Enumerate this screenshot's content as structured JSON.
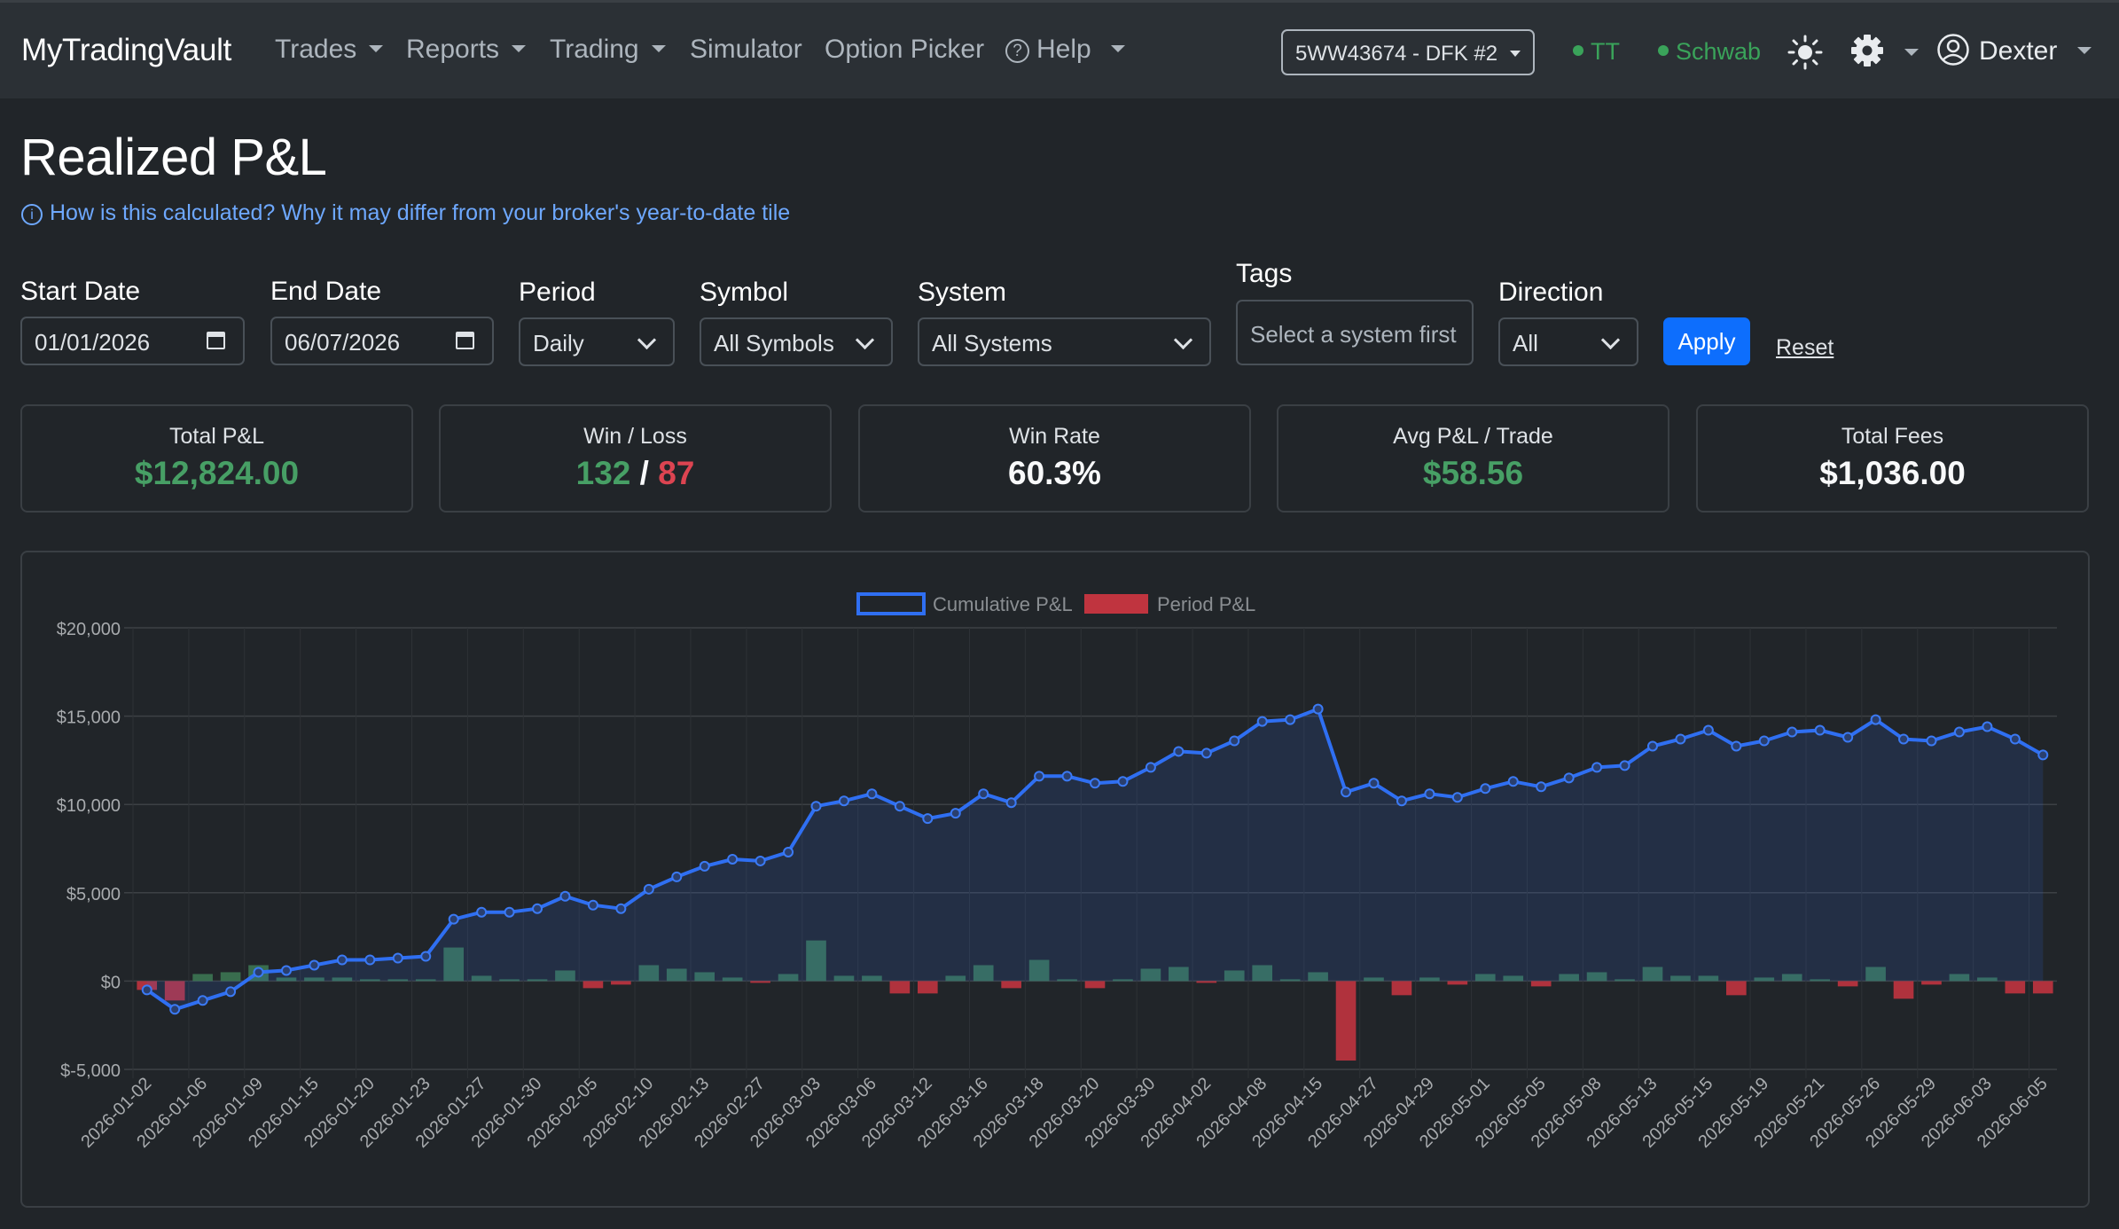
{
  "navbar": {
    "brand": "MyTradingVault",
    "items": [
      "Trades",
      "Reports",
      "Trading",
      "Simulator",
      "Option Picker",
      "Help"
    ],
    "account": "5WW43674 - DFK #2",
    "status": [
      "TT",
      "Schwab"
    ],
    "user": "Dexter",
    "icons": [
      "help-icon",
      "sun-icon",
      "gear-icon",
      "user-circle-icon"
    ],
    "status_color": "#3aa35a"
  },
  "page": {
    "title": "Realized P&L",
    "info_link": "How is this calculated? Why it may differ from your broker's year-to-date tile"
  },
  "filters": {
    "start_date": {
      "label": "Start Date",
      "value": "01/01/2026"
    },
    "end_date": {
      "label": "End Date",
      "value": "06/07/2026"
    },
    "period": {
      "label": "Period",
      "value": "Daily"
    },
    "symbol": {
      "label": "Symbol",
      "value": "All Symbols"
    },
    "system": {
      "label": "System",
      "value": "All Systems"
    },
    "tags": {
      "label": "Tags",
      "placeholder": "Select a system first"
    },
    "direction": {
      "label": "Direction",
      "value": "All"
    },
    "apply": "Apply",
    "reset": "Reset"
  },
  "stats": {
    "total_pnl": {
      "label": "Total P&L",
      "value": "$12,824.00"
    },
    "win_loss": {
      "label": "Win / Loss",
      "wins": "132",
      "sep": "/",
      "losses": "87"
    },
    "win_rate": {
      "label": "Win Rate",
      "value": "60.3%"
    },
    "avg_pnl": {
      "label": "Avg P&L / Trade",
      "value": "$58.56"
    },
    "total_fees": {
      "label": "Total Fees",
      "value": "$1,036.00"
    }
  },
  "colors": {
    "accent": "#0d6efd",
    "positive": "#479f65",
    "negative": "#dc4451",
    "line": "#2f6ff2"
  },
  "chart_data": {
    "type": "bar+line",
    "legend": [
      "Cumulative P&L",
      "Period P&L"
    ],
    "legend_position": "top",
    "ylim": [
      -5000,
      20000
    ],
    "yticks": [
      20000,
      15000,
      10000,
      5000,
      0,
      -5000
    ],
    "ytick_labels": [
      "$20,000",
      "$15,000",
      "$10,000",
      "$5,000",
      "$0",
      "$-5,000"
    ],
    "grid": true,
    "xtick_labels": [
      "2026-01-02",
      "2026-01-06",
      "2026-01-09",
      "2026-01-15",
      "2026-01-20",
      "2026-01-23",
      "2026-01-27",
      "2026-01-30",
      "2026-02-05",
      "2026-02-10",
      "2026-02-13",
      "2026-02-27",
      "2026-03-03",
      "2026-03-06",
      "2026-03-12",
      "2026-03-16",
      "2026-03-18",
      "2026-03-20",
      "2026-03-30",
      "2026-04-02",
      "2026-04-08",
      "2026-04-15",
      "2026-04-27",
      "2026-04-29",
      "2026-05-01",
      "2026-05-05",
      "2026-05-08",
      "2026-05-13",
      "2026-05-15",
      "2026-05-19",
      "2026-05-21",
      "2026-05-26",
      "2026-05-29",
      "2026-06-03",
      "2026-06-05"
    ],
    "series": [
      {
        "name": "Cumulative P&L",
        "values": [
          -500,
          -1600,
          -1100,
          -600,
          500,
          600,
          900,
          1200,
          1200,
          1300,
          1400,
          3500,
          3900,
          3900,
          4100,
          4800,
          4300,
          4100,
          5200,
          5900,
          6500,
          6900,
          6800,
          7300,
          9900,
          10200,
          10600,
          9900,
          9200,
          9500,
          10600,
          10100,
          11600,
          11600,
          11200,
          11300,
          12100,
          13000,
          12900,
          13600,
          14700,
          14800,
          15400,
          10700,
          11200,
          10200,
          10600,
          10400,
          10900,
          11300,
          11000,
          11500,
          12100,
          12200,
          13300,
          13700,
          14200,
          13300,
          13600,
          14100,
          14200,
          13800,
          14800,
          13700,
          13600,
          14100,
          14400,
          13700,
          12800
        ]
      },
      {
        "name": "Period P&L",
        "values": [
          -500,
          -1100,
          400,
          500,
          900,
          200,
          200,
          200,
          100,
          100,
          100,
          1900,
          300,
          100,
          100,
          600,
          -400,
          -200,
          900,
          700,
          500,
          200,
          -100,
          400,
          2300,
          300,
          300,
          -700,
          -700,
          300,
          900,
          -400,
          1200,
          100,
          -400,
          100,
          700,
          800,
          -100,
          600,
          900,
          100,
          500,
          -4500,
          200,
          -800,
          200,
          -200,
          400,
          300,
          -300,
          400,
          500,
          100,
          800,
          300,
          300,
          -800,
          200,
          400,
          100,
          -300,
          800,
          -1000,
          -200,
          400,
          200,
          -700,
          -700
        ]
      }
    ]
  }
}
